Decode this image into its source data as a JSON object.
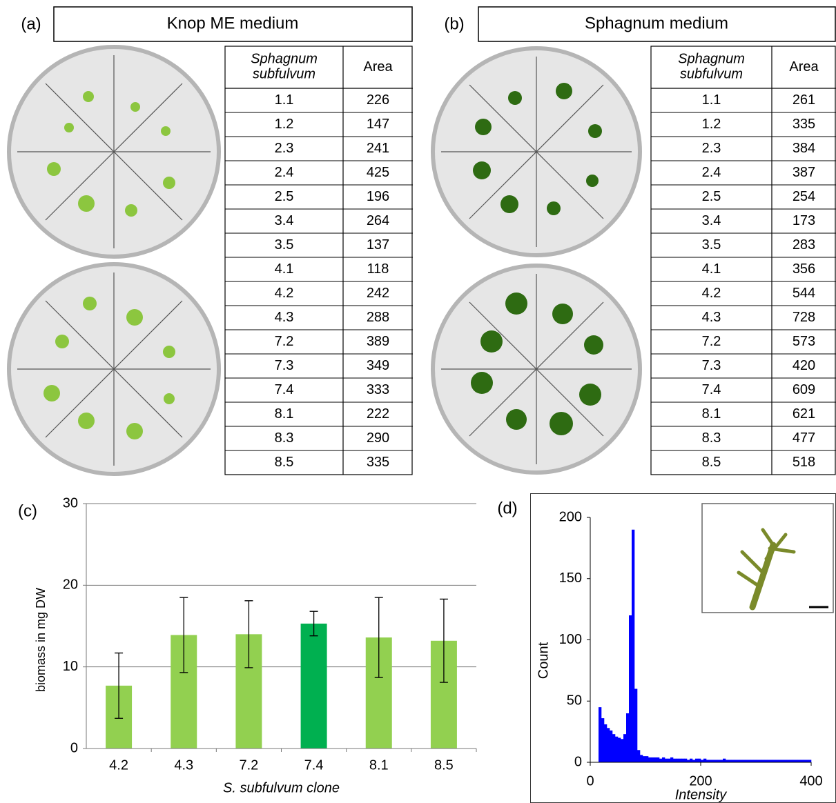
{
  "panels": [
    {
      "label": "(a)",
      "title": "Knop ME medium",
      "table": {
        "header": [
          "Sphagnum subfulvum",
          "Area"
        ],
        "rows": [
          [
            "1.1",
            226
          ],
          [
            "1.2",
            147
          ],
          [
            "2.3",
            241
          ],
          [
            "2.4",
            425
          ],
          [
            "2.5",
            196
          ],
          [
            "3.4",
            264
          ],
          [
            "3.5",
            137
          ],
          [
            "4.1",
            118
          ],
          [
            "4.2",
            242
          ],
          [
            "4.3",
            288
          ],
          [
            "7.2",
            389
          ],
          [
            "7.3",
            349
          ],
          [
            "7.4",
            333
          ],
          [
            "8.1",
            222
          ],
          [
            "8.3",
            290
          ],
          [
            "8.5",
            335
          ]
        ]
      }
    },
    {
      "label": "(b)",
      "title": "Sphagnum medium",
      "table": {
        "header": [
          "Sphagnum subfulvum",
          "Area"
        ],
        "rows": [
          [
            "1.1",
            261
          ],
          [
            "1.2",
            335
          ],
          [
            "2.3",
            384
          ],
          [
            "2.4",
            387
          ],
          [
            "2.5",
            254
          ],
          [
            "3.4",
            173
          ],
          [
            "3.5",
            283
          ],
          [
            "4.1",
            356
          ],
          [
            "4.2",
            544
          ],
          [
            "4.3",
            728
          ],
          [
            "7.2",
            573
          ],
          [
            "7.3",
            420
          ],
          [
            "7.4",
            609
          ],
          [
            "8.1",
            621
          ],
          [
            "8.3",
            477
          ],
          [
            "8.5",
            518
          ]
        ]
      }
    }
  ],
  "chart_data": [
    {
      "type": "bar",
      "label": "(c)",
      "x_label": "S. subfulvum clone",
      "y_label": "biomass in mg DW",
      "categories": [
        "4.2",
        "4.3",
        "7.2",
        "7.4",
        "8.1",
        "8.5"
      ],
      "values": [
        7.7,
        13.9,
        14.0,
        15.3,
        13.6,
        13.2
      ],
      "errors": [
        4.0,
        4.6,
        4.1,
        1.5,
        4.9,
        5.1
      ],
      "colors": [
        "#92d050",
        "#92d050",
        "#92d050",
        "#00b050",
        "#92d050",
        "#92d050"
      ],
      "ylim": [
        0,
        30
      ],
      "yticks": [
        0,
        10,
        20,
        30
      ],
      "grid": true
    },
    {
      "type": "histogram",
      "label": "(d)",
      "x_label": "Intensity",
      "y_label": "Count",
      "color": "#0000ff",
      "bins": [
        0,
        5,
        10,
        15,
        20,
        25,
        30,
        35,
        40,
        45,
        50,
        55,
        60,
        65,
        70,
        75,
        80,
        85,
        90,
        95,
        100,
        105,
        110,
        115,
        120,
        125,
        130,
        135,
        140,
        145,
        150,
        155,
        160,
        165,
        170,
        175,
        180,
        185,
        190,
        195,
        200,
        205,
        210,
        215,
        220,
        225,
        230,
        235,
        240,
        245,
        250,
        255,
        260,
        265,
        270,
        275,
        280,
        285,
        290,
        295,
        300,
        305,
        310,
        315,
        320,
        325,
        330,
        335,
        340,
        345,
        350,
        355,
        360,
        365,
        370,
        375,
        380,
        385,
        390,
        395,
        400
      ],
      "counts": [
        0,
        0,
        0,
        45,
        36,
        31,
        28,
        26,
        23,
        21,
        20,
        19,
        23,
        40,
        120,
        190,
        60,
        10,
        6,
        5,
        5,
        4,
        4,
        4,
        4,
        3,
        4,
        3,
        3,
        4,
        3,
        3,
        3,
        3,
        3,
        2,
        3,
        2,
        3,
        3,
        2,
        3,
        2,
        2,
        2,
        2,
        2,
        2,
        3,
        2,
        2,
        2,
        2,
        2,
        2,
        2,
        2,
        2,
        2,
        2,
        2,
        2,
        2,
        2,
        2,
        2,
        2,
        2,
        2,
        2,
        2,
        2,
        2,
        2,
        2,
        2,
        2,
        2,
        2,
        2
      ],
      "xlim": [
        0,
        400
      ],
      "xticks": [
        0,
        200,
        400
      ],
      "ylim": [
        0,
        200
      ],
      "yticks": [
        0,
        50,
        100,
        150,
        200
      ]
    }
  ]
}
